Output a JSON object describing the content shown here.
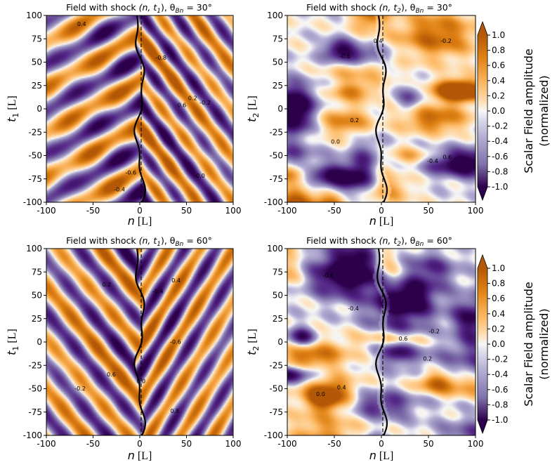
{
  "figure": {
    "colors": {
      "neg": "#3f0d6e",
      "zero": "#f7f7f7",
      "pos": "#c65f00",
      "contour": "#000000"
    }
  },
  "colorbar": {
    "label_line1": "Scalar Field amplitude",
    "label_line2": "(normalized)",
    "ticks": [
      "1.0",
      "0.8",
      "0.6",
      "0.4",
      "0.2",
      "0.0",
      "-0.2",
      "-0.4",
      "-0.6",
      "-0.8",
      "-1.0"
    ]
  },
  "chart_data": [
    {
      "type": "heatmap",
      "title": "Field with shock (n, t₁), θBn = 30°",
      "title_main": "Field with shock ",
      "title_paren": "(n, t",
      "title_sub": "1",
      "title_close": "), θ",
      "title_theta_sub": "Bn",
      "title_val": " = 30°",
      "xlabel_var": "n",
      "xlabel_unit": " [L]",
      "ylabel_var": "t",
      "ylabel_sub": "1",
      "ylabel_unit": " [L]",
      "xlim": [
        -100,
        100
      ],
      "ylim": [
        -100,
        100
      ],
      "xticks": [
        "-100",
        "-50",
        "0",
        "50",
        "100"
      ],
      "yticks": [
        "100",
        "75",
        "50",
        "25",
        "0",
        "-25",
        "-50",
        "-75",
        "-100"
      ],
      "pattern": {
        "kind": "stripes",
        "slope_left": 0.55,
        "slope_right": -1.3,
        "wavelength": 48,
        "phase": 0.8,
        "noise": 0.25,
        "sign": -1
      },
      "contour_labels": [
        "-0.2",
        "0.2",
        "-0.4",
        "0.4",
        "-0.6",
        "0.6",
        "-0.0",
        "-0.8"
      ],
      "shock": "curved boundary near n = 0"
    },
    {
      "type": "heatmap",
      "title": "Field with shock (n, t₂), θBn = 30°",
      "title_main": "Field with shock ",
      "title_paren": "(n, t",
      "title_sub": "2",
      "title_close": "), θ",
      "title_theta_sub": "Bn",
      "title_val": " = 30°",
      "xlabel_var": "n",
      "xlabel_unit": " [L]",
      "ylabel_var": "t",
      "ylabel_sub": "2",
      "ylabel_unit": " [L]",
      "xlim": [
        -100,
        100
      ],
      "ylim": [
        -100,
        100
      ],
      "xticks": [
        "-100",
        "-50",
        "0",
        "50",
        "100"
      ],
      "yticks": [
        "100",
        "75",
        "50",
        "25",
        "0",
        "-25",
        "-50",
        "-75",
        "-100"
      ],
      "pattern": {
        "kind": "blobs",
        "seed": 7,
        "noise": 0.55,
        "sign": 1
      },
      "contour_labels": [
        "-0.4",
        "0.4",
        "0.2",
        "-0.2",
        "0.6",
        "0.0",
        "-0.6"
      ],
      "shock": "curved boundary near n = 0"
    },
    {
      "type": "heatmap",
      "title": "Field with shock (n, t₁), θBn = 60°",
      "title_main": "Field with shock ",
      "title_paren": "(n, t",
      "title_sub": "1",
      "title_close": "), θ",
      "title_theta_sub": "Bn",
      "title_val": " = 60°",
      "xlabel_var": "n",
      "xlabel_unit": " [L]",
      "ylabel_var": "t",
      "ylabel_sub": "1",
      "ylabel_unit": " [L]",
      "xlim": [
        -100,
        100
      ],
      "ylim": [
        -100,
        100
      ],
      "xticks": [
        "-100",
        "-50",
        "0",
        "50",
        "100"
      ],
      "yticks": [
        "100",
        "75",
        "50",
        "25",
        "0",
        "-25",
        "-50",
        "-75",
        "-100"
      ],
      "pattern": {
        "kind": "stripes",
        "slope_left": -1.2,
        "slope_right": 1.6,
        "wavelength": 55,
        "phase": 2.2,
        "noise": 0.18,
        "sign": 1
      },
      "contour_labels": [
        "0.4",
        "-0.2",
        "0.2",
        "-0.4",
        "0.6",
        "0.8",
        "-0.6",
        "0.0"
      ],
      "shock": "curved boundary near n = 0"
    },
    {
      "type": "heatmap",
      "title": "Field with shock (n, t₂), θBn = 60°",
      "title_main": "Field with shock ",
      "title_paren": "(n, t",
      "title_sub": "2",
      "title_close": "), θ",
      "title_theta_sub": "Bn",
      "title_val": " = 60°",
      "xlabel_var": "n",
      "xlabel_unit": " [L]",
      "ylabel_var": "t",
      "ylabel_sub": "2",
      "ylabel_unit": " [L]",
      "xlim": [
        -100,
        100
      ],
      "ylim": [
        -100,
        100
      ],
      "xticks": [
        "-100",
        "-50",
        "0",
        "50",
        "100"
      ],
      "yticks": [
        "100",
        "75",
        "50",
        "25",
        "0",
        "-25",
        "-50",
        "-75",
        "-100"
      ],
      "pattern": {
        "kind": "blobs",
        "seed": 19,
        "noise": 0.6,
        "sign": 1
      },
      "contour_labels": [
        "0.6",
        "-0.2",
        "0.4",
        "-0.4",
        "0.2",
        "-0.6",
        "0.0"
      ],
      "shock": "curved boundary near n = 0"
    }
  ]
}
